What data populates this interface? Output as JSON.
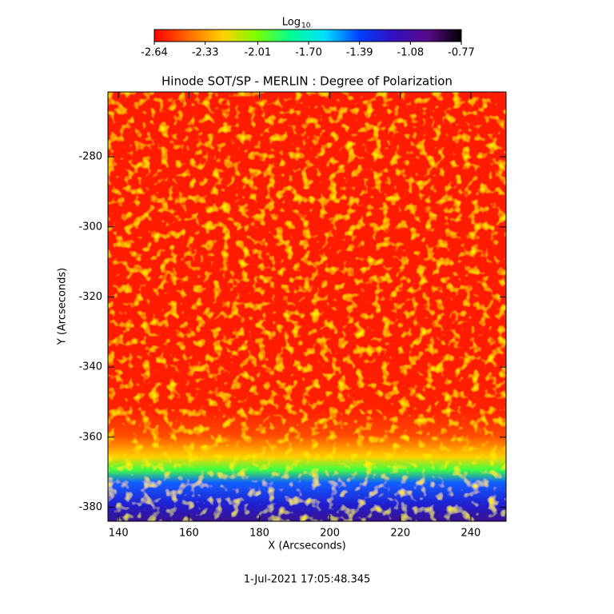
{
  "chart_data": {
    "type": "heatmap",
    "title": "Hinode SOT/SP - MERLIN : Degree of Polarization",
    "xlabel": "X (Arcseconds)",
    "ylabel": "Y (Arcseconds)",
    "xlim": [
      137,
      250
    ],
    "xticks": [
      140,
      160,
      180,
      200,
      220,
      240
    ],
    "ylim": [
      -384,
      -261.5
    ],
    "yticks": [
      -280,
      -300,
      -320,
      -340,
      -360,
      -380
    ],
    "colorbar_label": "Log",
    "colorbar_label_subscript": "10",
    "clim": [
      -2.64,
      -0.77
    ],
    "cticks": [
      -2.64,
      -2.33,
      -2.01,
      {
        "value": -1.7,
        "label": "-1.70"
      },
      -1.39,
      -1.08,
      -0.77
    ],
    "colormap": [
      "#ff0000",
      "#ff6a00",
      "#ffd000",
      "#7cff00",
      "#00ff90",
      "#00e0ff",
      "#0040ff",
      "#3010c0",
      "#5a0a8a",
      "#000000"
    ],
    "annotation": "1-Jul-2021 17:05:48.345"
  }
}
